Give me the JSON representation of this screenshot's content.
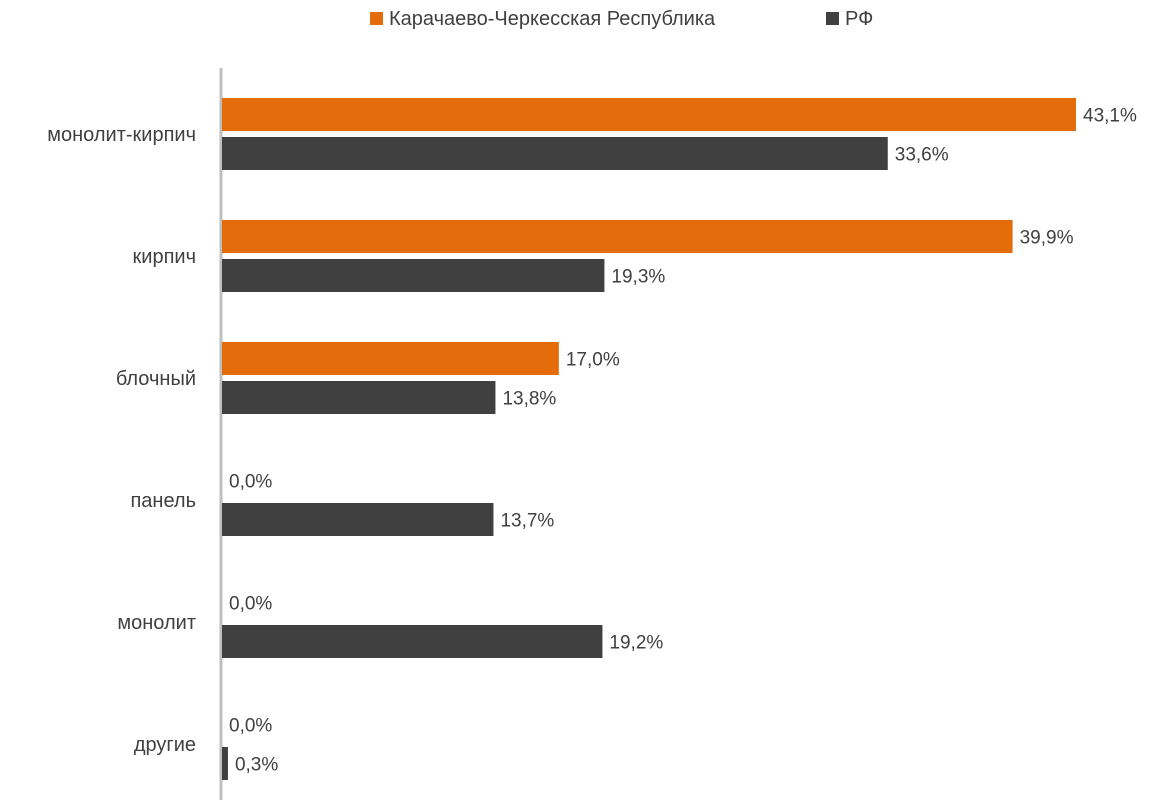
{
  "chart_data": {
    "type": "bar",
    "orientation": "horizontal",
    "categories": [
      "монолит-кирпич",
      "кирпич",
      "блочный",
      "панель",
      "монолит",
      "другие"
    ],
    "series": [
      {
        "name": "Карачаево-Черкесская Республика",
        "color": "#E46C0A",
        "values": [
          43.1,
          39.9,
          17.0,
          0.0,
          0.0,
          0.0
        ],
        "labels": [
          "43,1%",
          "39,9%",
          "17,0%",
          "0,0%",
          "0,0%",
          "0,0%"
        ]
      },
      {
        "name": "РФ",
        "color": "#404040",
        "values": [
          33.6,
          19.3,
          13.8,
          13.7,
          19.2,
          0.3
        ],
        "labels": [
          "33,6%",
          "19,3%",
          "13,8%",
          "13,7%",
          "19,2%",
          "0,3%"
        ]
      }
    ],
    "xlim": [
      0,
      43.1
    ],
    "grid": false,
    "legend_position": "top"
  }
}
